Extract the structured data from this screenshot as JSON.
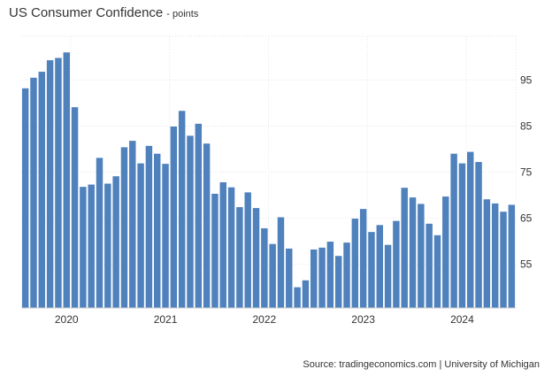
{
  "title": "US Consumer Confidence",
  "unit": "- points",
  "source": "Source: tradingeconomics.com | University of Michigan",
  "colors": {
    "bar": "#4f81bd",
    "grid": "#e6e6e6",
    "text": "#333333"
  },
  "chart_data": {
    "type": "bar",
    "title": "US Consumer Confidence",
    "subtitle": "- points",
    "xlabel": "",
    "ylabel": "",
    "ylim": [
      45.5,
      104.5
    ],
    "yticks": [
      55,
      65,
      75,
      85,
      95
    ],
    "y_axis_side": "right",
    "grid": true,
    "legend": "none",
    "x_tick_labels": [
      {
        "label": "2020",
        "index": 3
      },
      {
        "label": "2021",
        "index": 15
      },
      {
        "label": "2022",
        "index": 27
      },
      {
        "label": "2023",
        "index": 39
      },
      {
        "label": "2024",
        "index": 51
      }
    ],
    "categories": [
      "2019-09",
      "2019-10",
      "2019-11",
      "2019-12",
      "2020-01",
      "2020-02",
      "2020-03",
      "2020-04",
      "2020-05",
      "2020-06",
      "2020-07",
      "2020-08",
      "2020-09",
      "2020-10",
      "2020-11",
      "2020-12",
      "2021-01",
      "2021-02",
      "2021-03",
      "2021-04",
      "2021-05",
      "2021-06",
      "2021-07",
      "2021-08",
      "2021-09",
      "2021-10",
      "2021-11",
      "2021-12",
      "2022-01",
      "2022-02",
      "2022-03",
      "2022-04",
      "2022-05",
      "2022-06",
      "2022-07",
      "2022-08",
      "2022-09",
      "2022-10",
      "2022-11",
      "2022-12",
      "2023-01",
      "2023-02",
      "2023-03",
      "2023-04",
      "2023-05",
      "2023-06",
      "2023-07",
      "2023-08",
      "2023-09",
      "2023-10",
      "2023-11",
      "2023-12",
      "2024-01",
      "2024-02",
      "2024-03",
      "2024-04",
      "2024-05",
      "2024-06",
      "2024-07",
      "2024-08"
    ],
    "values": [
      93.2,
      95.5,
      96.8,
      99.3,
      99.8,
      101.0,
      89.1,
      71.8,
      72.3,
      78.1,
      72.5,
      74.1,
      80.4,
      81.8,
      76.9,
      80.7,
      79.0,
      76.8,
      84.9,
      88.3,
      82.9,
      85.5,
      81.2,
      70.3,
      72.8,
      71.7,
      67.4,
      70.6,
      67.2,
      62.8,
      59.4,
      65.2,
      58.4,
      50.0,
      51.5,
      58.2,
      58.6,
      59.9,
      56.8,
      59.7,
      64.9,
      67.0,
      62.0,
      63.5,
      59.2,
      64.4,
      71.6,
      69.5,
      68.1,
      63.8,
      61.3,
      69.7,
      79.0,
      76.9,
      79.4,
      77.2,
      69.1,
      68.2,
      66.4,
      67.9
    ]
  }
}
